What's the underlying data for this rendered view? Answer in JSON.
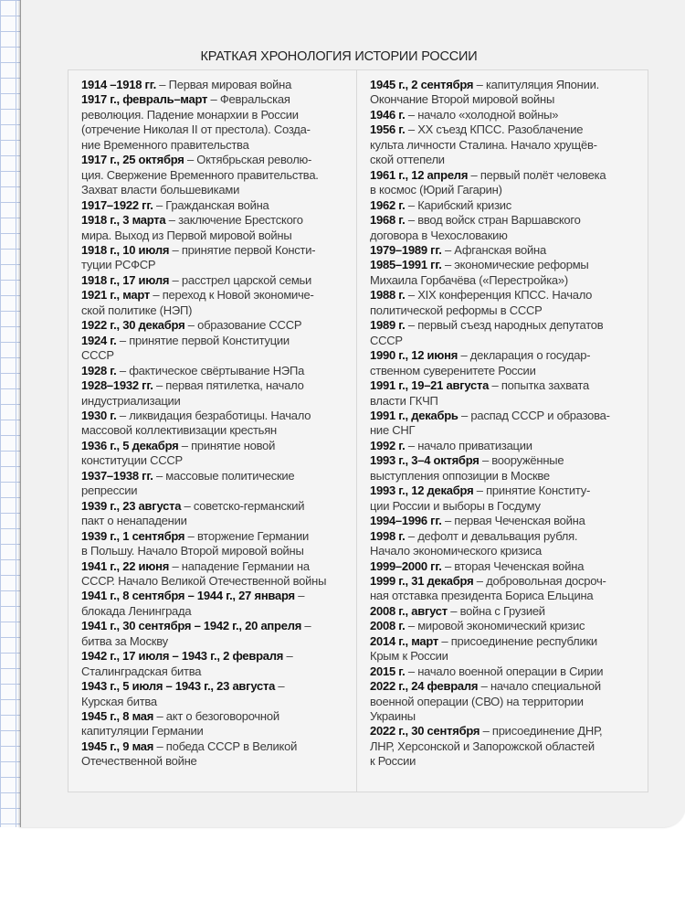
{
  "title": "КРАТКАЯ ХРОНОЛОГИЯ ИСТОРИИ РОССИИ",
  "left_column": [
    {
      "date": "1914 –1918 гг.",
      "text": " – Первая мировая война"
    },
    {
      "date": "1917 г., февраль–март",
      "text": " – Февральская\nреволюция. Падение монархии в России\n(отречение Николая II от престола). Созда-\nние Временного правительства"
    },
    {
      "date": "1917 г., 25 октября",
      "text": " – Октябрьская револю-\nция. Свержение Временного правительства.\nЗахват власти большевиками"
    },
    {
      "date": "1917–1922 гг.",
      "text": " – Гражданская война"
    },
    {
      "date": "1918 г., 3 марта",
      "text": " – заключение Брестского\nмира. Выход из Первой мировой войны"
    },
    {
      "date": "1918 г., 10 июля",
      "text": " – принятие первой Консти-\nтуции РСФСР"
    },
    {
      "date": "1918 г., 17 июля",
      "text": " – расстрел царской семьи"
    },
    {
      "date": "1921 г., март",
      "text": " – переход к Новой экономиче-\nской политике (НЭП)"
    },
    {
      "date": "1922 г., 30 декабря",
      "text": " – образование СССР"
    },
    {
      "date": "1924 г.",
      "text": " – принятие первой Конституции\nСССР"
    },
    {
      "date": "1928 г.",
      "text": " – фактическое свёртывание НЭПа"
    },
    {
      "date": "1928–1932 гг.",
      "text": " – первая пятилетка, начало\nиндустриализации"
    },
    {
      "date": "1930 г.",
      "text": " – ликвидация безработицы. Начало\nмассовой коллективизации крестьян"
    },
    {
      "date": "1936 г., 5 декабря",
      "text": " – принятие новой\nконституции СССР"
    },
    {
      "date": "1937–1938 гг.",
      "text": " – массовые политические\nрепрессии"
    },
    {
      "date": "1939 г., 23 августа",
      "text": " – советско-германский\nпакт о ненападении"
    },
    {
      "date": "1939 г., 1 сентября",
      "text": " – вторжение Германии\nв Польшу. Начало Второй мировой войны"
    },
    {
      "date": "1941 г., 22 июня",
      "text": " – нападение Германии на\nСССР. Начало Великой Отечественной войны"
    },
    {
      "date": "1941 г., 8 сентября – 1944 г., 27 января",
      "text": " –\nблокада Ленинграда"
    },
    {
      "date": "1941 г., 30 сентября – 1942 г., 20 апреля",
      "text": " –\nбитва за Москву"
    },
    {
      "date": "1942 г., 17 июля – 1943 г., 2 февраля",
      "text": " –\nСталинградская битва"
    },
    {
      "date": "1943 г., 5 июля – 1943 г., 23 августа",
      "text": " –\nКурская битва"
    },
    {
      "date": "1945 г., 8 мая",
      "text": " – акт о безоговорочной\nкапитуляции Германии"
    },
    {
      "date": "1945 г., 9 мая",
      "text": " – победа СССР в Великой\nОтечественной войне"
    }
  ],
  "right_column": [
    {
      "date": "1945 г., 2 сентября",
      "text": " – капитуляция Японии.\nОкончание Второй мировой войны"
    },
    {
      "date": "1946 г.",
      "text": " – начало «холодной войны»"
    },
    {
      "date": "1956 г.",
      "text": " – XX съезд КПСС. Разоблачение\nкульта личности Сталина. Начало хрущёв-\nской оттепели"
    },
    {
      "date": "1961 г., 12 апреля",
      "text": " – первый полёт человека\nв космос (Юрий Гагарин)"
    },
    {
      "date": "1962 г.",
      "text": " – Карибский кризис"
    },
    {
      "date": "1968 г.",
      "text": " – ввод войск стран Варшавского\nдоговора в Чехословакию"
    },
    {
      "date": "1979–1989 гг.",
      "text": " – Афганская война"
    },
    {
      "date": "1985–1991 гг.",
      "text": " – экономические реформы\nМихаила Горбачёва («Перестройка»)"
    },
    {
      "date": "1988 г.",
      "text": " – XIX конференция КПСС. Начало\nполитической реформы в СССР"
    },
    {
      "date": "1989 г.",
      "text": " – первый съезд народных депутатов\nСССР"
    },
    {
      "date": "1990 г., 12 июня",
      "text": " – декларация о государ-\nственном суверенитете России"
    },
    {
      "date": "1991 г., 19–21 августа",
      "text": " – попытка захвата\nвласти ГКЧП"
    },
    {
      "date": "1991 г., декабрь",
      "text": " – распад СССР и образова-\nние СНГ"
    },
    {
      "date": "1992 г.",
      "text": " – начало приватизации"
    },
    {
      "date": "1993 г., 3–4 октября",
      "text": " – вооружённые\nвыступления оппозиции в Москве"
    },
    {
      "date": "1993 г., 12 декабря",
      "text": " – принятие Конститу-\nции России и выборы в Госдуму"
    },
    {
      "date": "1994–1996 гг.",
      "text": " – первая Чеченская война"
    },
    {
      "date": "1998 г.",
      "text": " – дефолт и девальвация рубля.\nНачало экономического кризиса"
    },
    {
      "date": "1999–2000 гг.",
      "text": " – вторая Чеченская война"
    },
    {
      "date": "1999 г., 31 декабря",
      "text": " – добровольная досроч-\nная отставка президента Бориса Ельцина"
    },
    {
      "date": "2008 г., август",
      "text": " – война с Грузией"
    },
    {
      "date": "2008 г.",
      "text": " – мировой экономический кризис"
    },
    {
      "date": "2014 г., март",
      "text": " – присоединение республики\nКрым к России"
    },
    {
      "date": "2015 г.",
      "text": " – начало военной операции в Сирии"
    },
    {
      "date": "2022 г., 24 февраля",
      "text": " – начало специальной\nвоенной операции (СВО) на территории\nУкраины"
    },
    {
      "date": "2022 г., 30 сентября",
      "text": " – присоединение ДНР,\nЛНР, Херсонской и Запорожской областей\nк России"
    }
  ]
}
